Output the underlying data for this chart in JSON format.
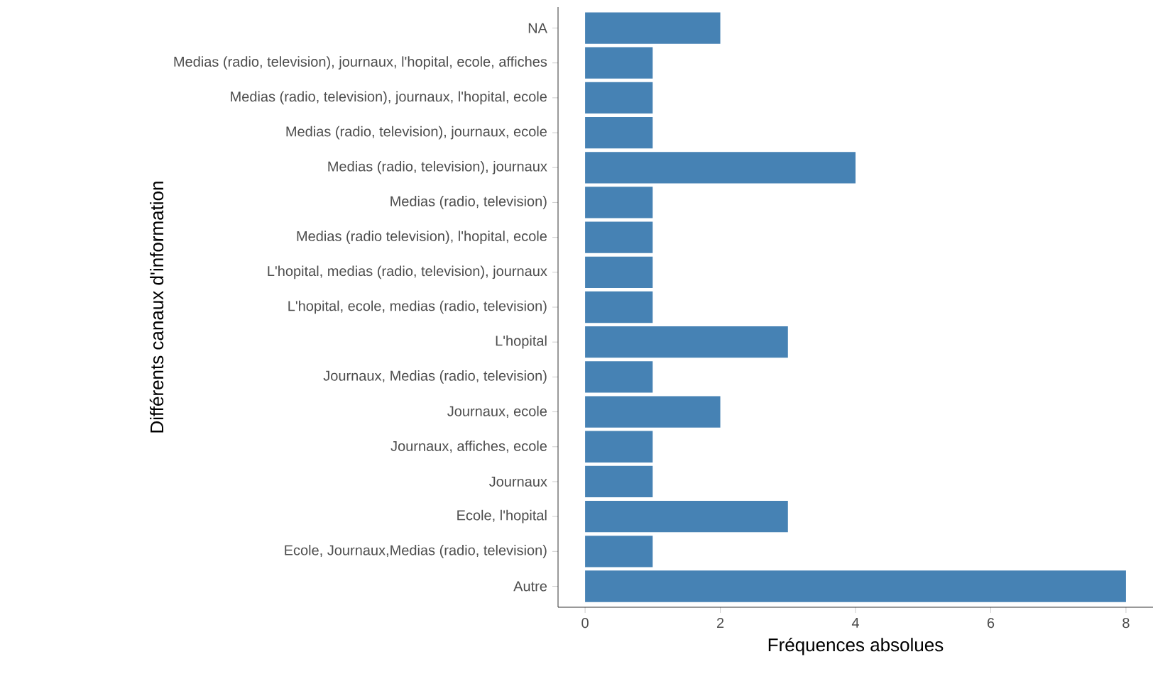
{
  "chart_data": {
    "type": "bar",
    "orientation": "horizontal",
    "xlabel": "Fréquences absolues",
    "ylabel": "Différents canaux d'information",
    "categories": [
      "NA",
      "Medias (radio, television), journaux, l'hopital, ecole, affiches",
      "Medias (radio, television), journaux, l'hopital, ecole",
      "Medias (radio, television), journaux, ecole",
      "Medias (radio, television), journaux",
      "Medias (radio, television)",
      "Medias (radio television), l'hopital, ecole",
      "L'hopital, medias (radio, television), journaux",
      "L'hopital, ecole, medias (radio, television)",
      "L'hopital",
      "Journaux, Medias (radio, television)",
      "Journaux, ecole",
      "Journaux, affiches, ecole",
      "Journaux",
      "Ecole, l'hopital",
      "Ecole, Journaux,Medias (radio, television)",
      "Autre"
    ],
    "values": [
      2,
      1,
      1,
      1,
      4,
      1,
      1,
      1,
      1,
      3,
      1,
      2,
      1,
      1,
      3,
      1,
      8
    ],
    "color": "#4682b4",
    "xlim": [
      -0.4,
      8.4
    ],
    "xticks": [
      0,
      2,
      4,
      6,
      8
    ],
    "grid": false
  }
}
